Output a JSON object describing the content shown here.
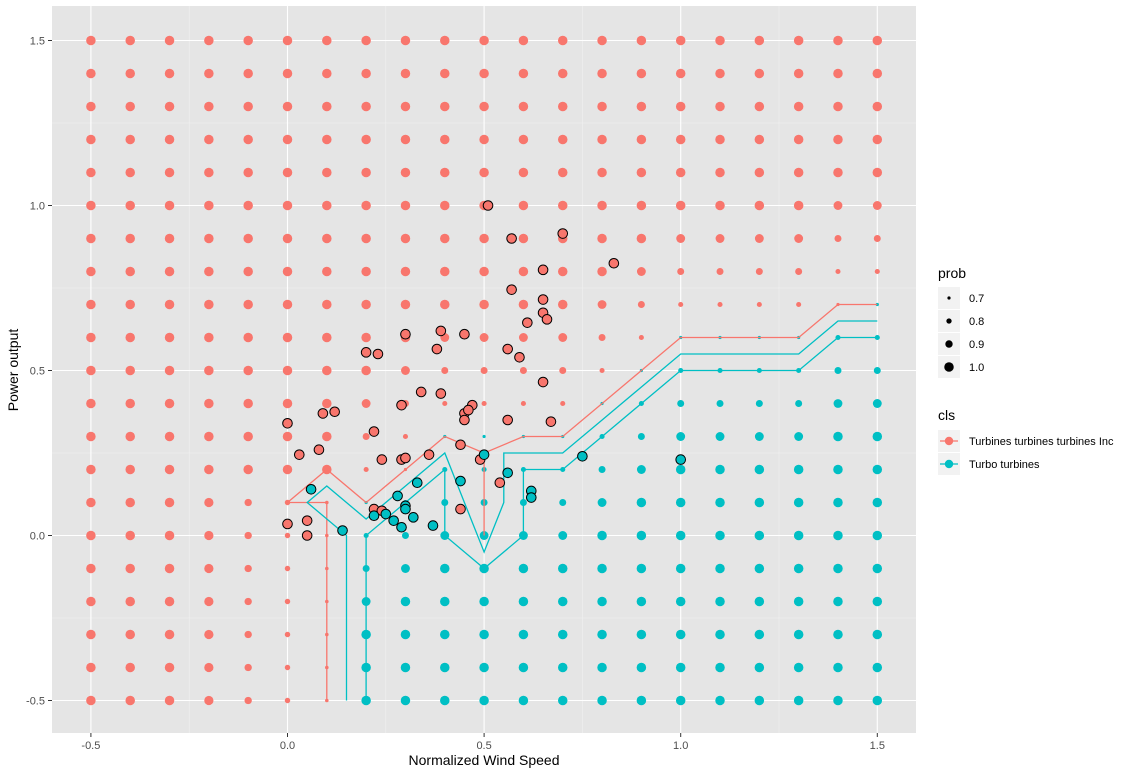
{
  "chart_data": {
    "type": "scatter",
    "title": "",
    "xlabel": "Normalized Wind Speed",
    "ylabel": "Power output",
    "xlim": [
      -0.55,
      1.55
    ],
    "ylim": [
      -0.6,
      1.6
    ],
    "x_ticks": [
      -0.5,
      0.0,
      0.5,
      1.0,
      1.5
    ],
    "x_tick_labels": [
      "-0.5",
      "0.0",
      "0.5",
      "1.0",
      "1.5"
    ],
    "y_ticks": [
      -0.5,
      0.0,
      0.5,
      1.0,
      1.5
    ],
    "y_tick_labels": [
      "-0.5",
      "0.0",
      "0.5",
      "1.0",
      "1.5"
    ],
    "grid": true,
    "panel_background": "#e5e5e5",
    "colors": {
      "Turbines turbines turbines Inc": "#f8766d",
      "Turbo turbines": "#00bfc4"
    },
    "legend": {
      "position": "right",
      "prob": {
        "title": "prob",
        "values": [
          0.7,
          0.8,
          0.9,
          1.0
        ],
        "labels": [
          "0.7",
          "0.8",
          "0.9",
          "1.0"
        ]
      },
      "cls": {
        "title": "cls",
        "labels": [
          "Turbines turbines turbines Inc",
          "Turbo turbines"
        ]
      }
    },
    "grid_points": {
      "x": [
        -0.5,
        -0.4,
        -0.3,
        -0.2,
        -0.1,
        0.0,
        0.1,
        0.2,
        0.3,
        0.4,
        0.5,
        0.6,
        0.7,
        0.8,
        0.9,
        1.0,
        1.1,
        1.2,
        1.3,
        1.4,
        1.5
      ],
      "y": [
        -0.5,
        -0.4,
        -0.3,
        -0.2,
        -0.1,
        0.0,
        0.1,
        0.2,
        0.3,
        0.4,
        0.5,
        0.6,
        0.7,
        0.8,
        0.9,
        1.0,
        1.1,
        1.2,
        1.3,
        1.4,
        1.5
      ],
      "note_rule": "class and prob predicted from boundary"
    },
    "boundaries": [
      {
        "cls": "Turbines turbines turbines Inc",
        "points": [
          [
            0.1,
            -0.5
          ],
          [
            0.1,
            0.1
          ],
          [
            0.0,
            0.1
          ],
          [
            0.1,
            0.2
          ],
          [
            0.2,
            0.1
          ],
          [
            0.3,
            0.2
          ],
          [
            0.4,
            0.3
          ],
          [
            0.5,
            0.25
          ],
          [
            0.5,
            0.0
          ],
          [
            0.5,
            0.25
          ],
          [
            0.6,
            0.3
          ],
          [
            0.7,
            0.3
          ],
          [
            0.8,
            0.4
          ],
          [
            0.9,
            0.5
          ],
          [
            1.0,
            0.6
          ],
          [
            1.3,
            0.6
          ],
          [
            1.4,
            0.7
          ],
          [
            1.5,
            0.7
          ]
        ]
      },
      {
        "cls": "Turbo turbines",
        "points": [
          [
            0.15,
            -0.5
          ],
          [
            0.15,
            0.0
          ],
          [
            0.05,
            0.1
          ],
          [
            0.1,
            0.15
          ],
          [
            0.2,
            0.05
          ],
          [
            0.3,
            0.15
          ],
          [
            0.4,
            0.25
          ],
          [
            0.45,
            0.1
          ],
          [
            0.5,
            -0.05
          ],
          [
            0.55,
            0.1
          ],
          [
            0.55,
            0.25
          ],
          [
            0.7,
            0.25
          ],
          [
            0.8,
            0.35
          ],
          [
            0.9,
            0.45
          ],
          [
            1.0,
            0.55
          ],
          [
            1.3,
            0.55
          ],
          [
            1.4,
            0.65
          ],
          [
            1.5,
            0.65
          ]
        ]
      },
      {
        "cls": "Turbo turbines",
        "points": [
          [
            0.2,
            -0.5
          ],
          [
            0.2,
            0.0
          ],
          [
            0.25,
            0.05
          ],
          [
            0.3,
            0.1
          ],
          [
            0.4,
            0.2
          ],
          [
            0.4,
            0.0
          ],
          [
            0.5,
            -0.1
          ],
          [
            0.6,
            0.0
          ],
          [
            0.6,
            0.2
          ],
          [
            0.7,
            0.2
          ],
          [
            0.8,
            0.3
          ],
          [
            0.9,
            0.4
          ],
          [
            1.0,
            0.5
          ],
          [
            1.3,
            0.5
          ],
          [
            1.4,
            0.6
          ],
          [
            1.5,
            0.6
          ]
        ]
      }
    ],
    "series": [
      {
        "name": "Turbines turbines turbines Inc",
        "points": [
          [
            0.51,
            1.0
          ],
          [
            0.57,
            0.9
          ],
          [
            0.7,
            0.915
          ],
          [
            0.83,
            0.825
          ],
          [
            0.65,
            0.805
          ],
          [
            0.57,
            0.745
          ],
          [
            0.65,
            0.715
          ],
          [
            0.65,
            0.675
          ],
          [
            0.66,
            0.655
          ],
          [
            0.61,
            0.645
          ],
          [
            0.39,
            0.62
          ],
          [
            0.3,
            0.61
          ],
          [
            0.45,
            0.61
          ],
          [
            0.2,
            0.555
          ],
          [
            0.23,
            0.55
          ],
          [
            0.38,
            0.565
          ],
          [
            0.56,
            0.565
          ],
          [
            0.59,
            0.54
          ],
          [
            0.65,
            0.465
          ],
          [
            0.34,
            0.435
          ],
          [
            0.39,
            0.43
          ],
          [
            0.29,
            0.395
          ],
          [
            0.47,
            0.395
          ],
          [
            0.45,
            0.37
          ],
          [
            0.46,
            0.38
          ],
          [
            0.45,
            0.35
          ],
          [
            0.12,
            0.375
          ],
          [
            0.09,
            0.37
          ],
          [
            0.0,
            0.34
          ],
          [
            0.56,
            0.35
          ],
          [
            0.67,
            0.345
          ],
          [
            0.22,
            0.315
          ],
          [
            0.08,
            0.26
          ],
          [
            0.44,
            0.275
          ],
          [
            0.03,
            0.245
          ],
          [
            0.36,
            0.245
          ],
          [
            0.24,
            0.23
          ],
          [
            0.29,
            0.23
          ],
          [
            0.3,
            0.235
          ],
          [
            0.49,
            0.23
          ],
          [
            0.54,
            0.16
          ],
          [
            0.44,
            0.08
          ],
          [
            0.22,
            0.08
          ],
          [
            0.24,
            0.075
          ],
          [
            0.0,
            0.035
          ],
          [
            0.05,
            0.045
          ],
          [
            0.05,
            0.0
          ]
        ]
      },
      {
        "name": "Turbo turbines",
        "points": [
          [
            0.5,
            0.245
          ],
          [
            0.75,
            0.24
          ],
          [
            1.0,
            0.23
          ],
          [
            0.56,
            0.19
          ],
          [
            0.44,
            0.165
          ],
          [
            0.33,
            0.16
          ],
          [
            0.28,
            0.12
          ],
          [
            0.62,
            0.135
          ],
          [
            0.62,
            0.115
          ],
          [
            0.3,
            0.09
          ],
          [
            0.3,
            0.08
          ],
          [
            0.06,
            0.14
          ],
          [
            0.22,
            0.06
          ],
          [
            0.25,
            0.065
          ],
          [
            0.32,
            0.055
          ],
          [
            0.27,
            0.045
          ],
          [
            0.29,
            0.025
          ],
          [
            0.37,
            0.03
          ],
          [
            0.14,
            0.015
          ]
        ]
      }
    ]
  }
}
